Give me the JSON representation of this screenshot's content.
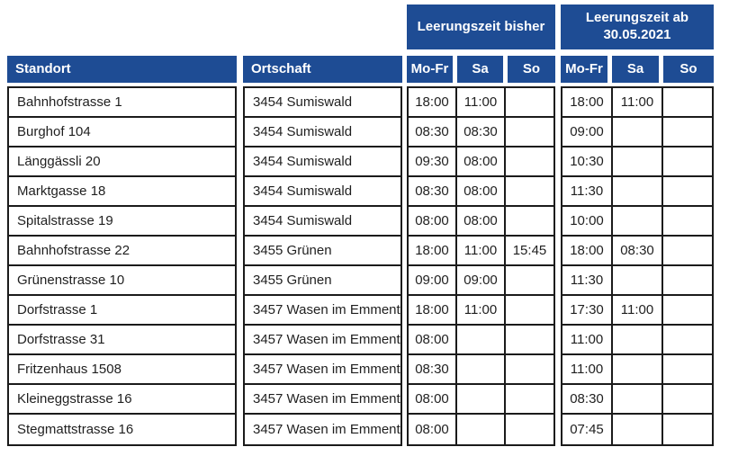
{
  "theme": {
    "header_blue": "#1e4c94",
    "border_black": "#1b1b1b"
  },
  "table": {
    "group_headers": {
      "bisher": "Leerungszeit bisher",
      "ab": "Leerungszeit ab 30.05.2021"
    },
    "column_headers": {
      "standort": "Standort",
      "ortschaft": "Ortschaft",
      "days": [
        "Mo-Fr",
        "Sa",
        "So"
      ]
    },
    "rows": [
      {
        "standort": "Bahnhofstrasse 1",
        "ortschaft": "3454 Sumiswald",
        "bisher": [
          "18:00",
          "11:00",
          ""
        ],
        "ab": [
          "18:00",
          "11:00",
          ""
        ]
      },
      {
        "standort": "Burghof 104",
        "ortschaft": "3454 Sumiswald",
        "bisher": [
          "08:30",
          "08:30",
          ""
        ],
        "ab": [
          "09:00",
          "",
          ""
        ]
      },
      {
        "standort": "Länggässli 20",
        "ortschaft": "3454 Sumiswald",
        "bisher": [
          "09:30",
          "08:00",
          ""
        ],
        "ab": [
          "10:30",
          "",
          ""
        ]
      },
      {
        "standort": "Marktgasse 18",
        "ortschaft": "3454 Sumiswald",
        "bisher": [
          "08:30",
          "08:00",
          ""
        ],
        "ab": [
          "11:30",
          "",
          ""
        ]
      },
      {
        "standort": "Spitalstrasse 19",
        "ortschaft": "3454 Sumiswald",
        "bisher": [
          "08:00",
          "08:00",
          ""
        ],
        "ab": [
          "10:00",
          "",
          ""
        ]
      },
      {
        "standort": "Bahnhofstrasse 22",
        "ortschaft": "3455 Grünen",
        "bisher": [
          "18:00",
          "11:00",
          "15:45"
        ],
        "ab": [
          "18:00",
          "08:30",
          ""
        ]
      },
      {
        "standort": "Grünenstrasse 10",
        "ortschaft": "3455 Grünen",
        "bisher": [
          "09:00",
          "09:00",
          ""
        ],
        "ab": [
          "11:30",
          "",
          ""
        ]
      },
      {
        "standort": "Dorfstrasse 1",
        "ortschaft": "3457 Wasen im Emment",
        "bisher": [
          "18:00",
          "11:00",
          ""
        ],
        "ab": [
          "17:30",
          "11:00",
          ""
        ]
      },
      {
        "standort": "Dorfstrasse 31",
        "ortschaft": "3457 Wasen im Emment",
        "bisher": [
          "08:00",
          "",
          ""
        ],
        "ab": [
          "11:00",
          "",
          ""
        ]
      },
      {
        "standort": "Fritzenhaus 1508",
        "ortschaft": "3457 Wasen im Emment",
        "bisher": [
          "08:30",
          "",
          ""
        ],
        "ab": [
          "11:00",
          "",
          ""
        ]
      },
      {
        "standort": "Kleineggstrasse 16",
        "ortschaft": "3457 Wasen im Emment",
        "bisher": [
          "08:00",
          "",
          ""
        ],
        "ab": [
          "08:30",
          "",
          ""
        ]
      },
      {
        "standort": "Stegmattstrasse 16",
        "ortschaft": "3457 Wasen im Emment",
        "bisher": [
          "08:00",
          "",
          ""
        ],
        "ab": [
          "07:45",
          "",
          ""
        ]
      }
    ]
  }
}
